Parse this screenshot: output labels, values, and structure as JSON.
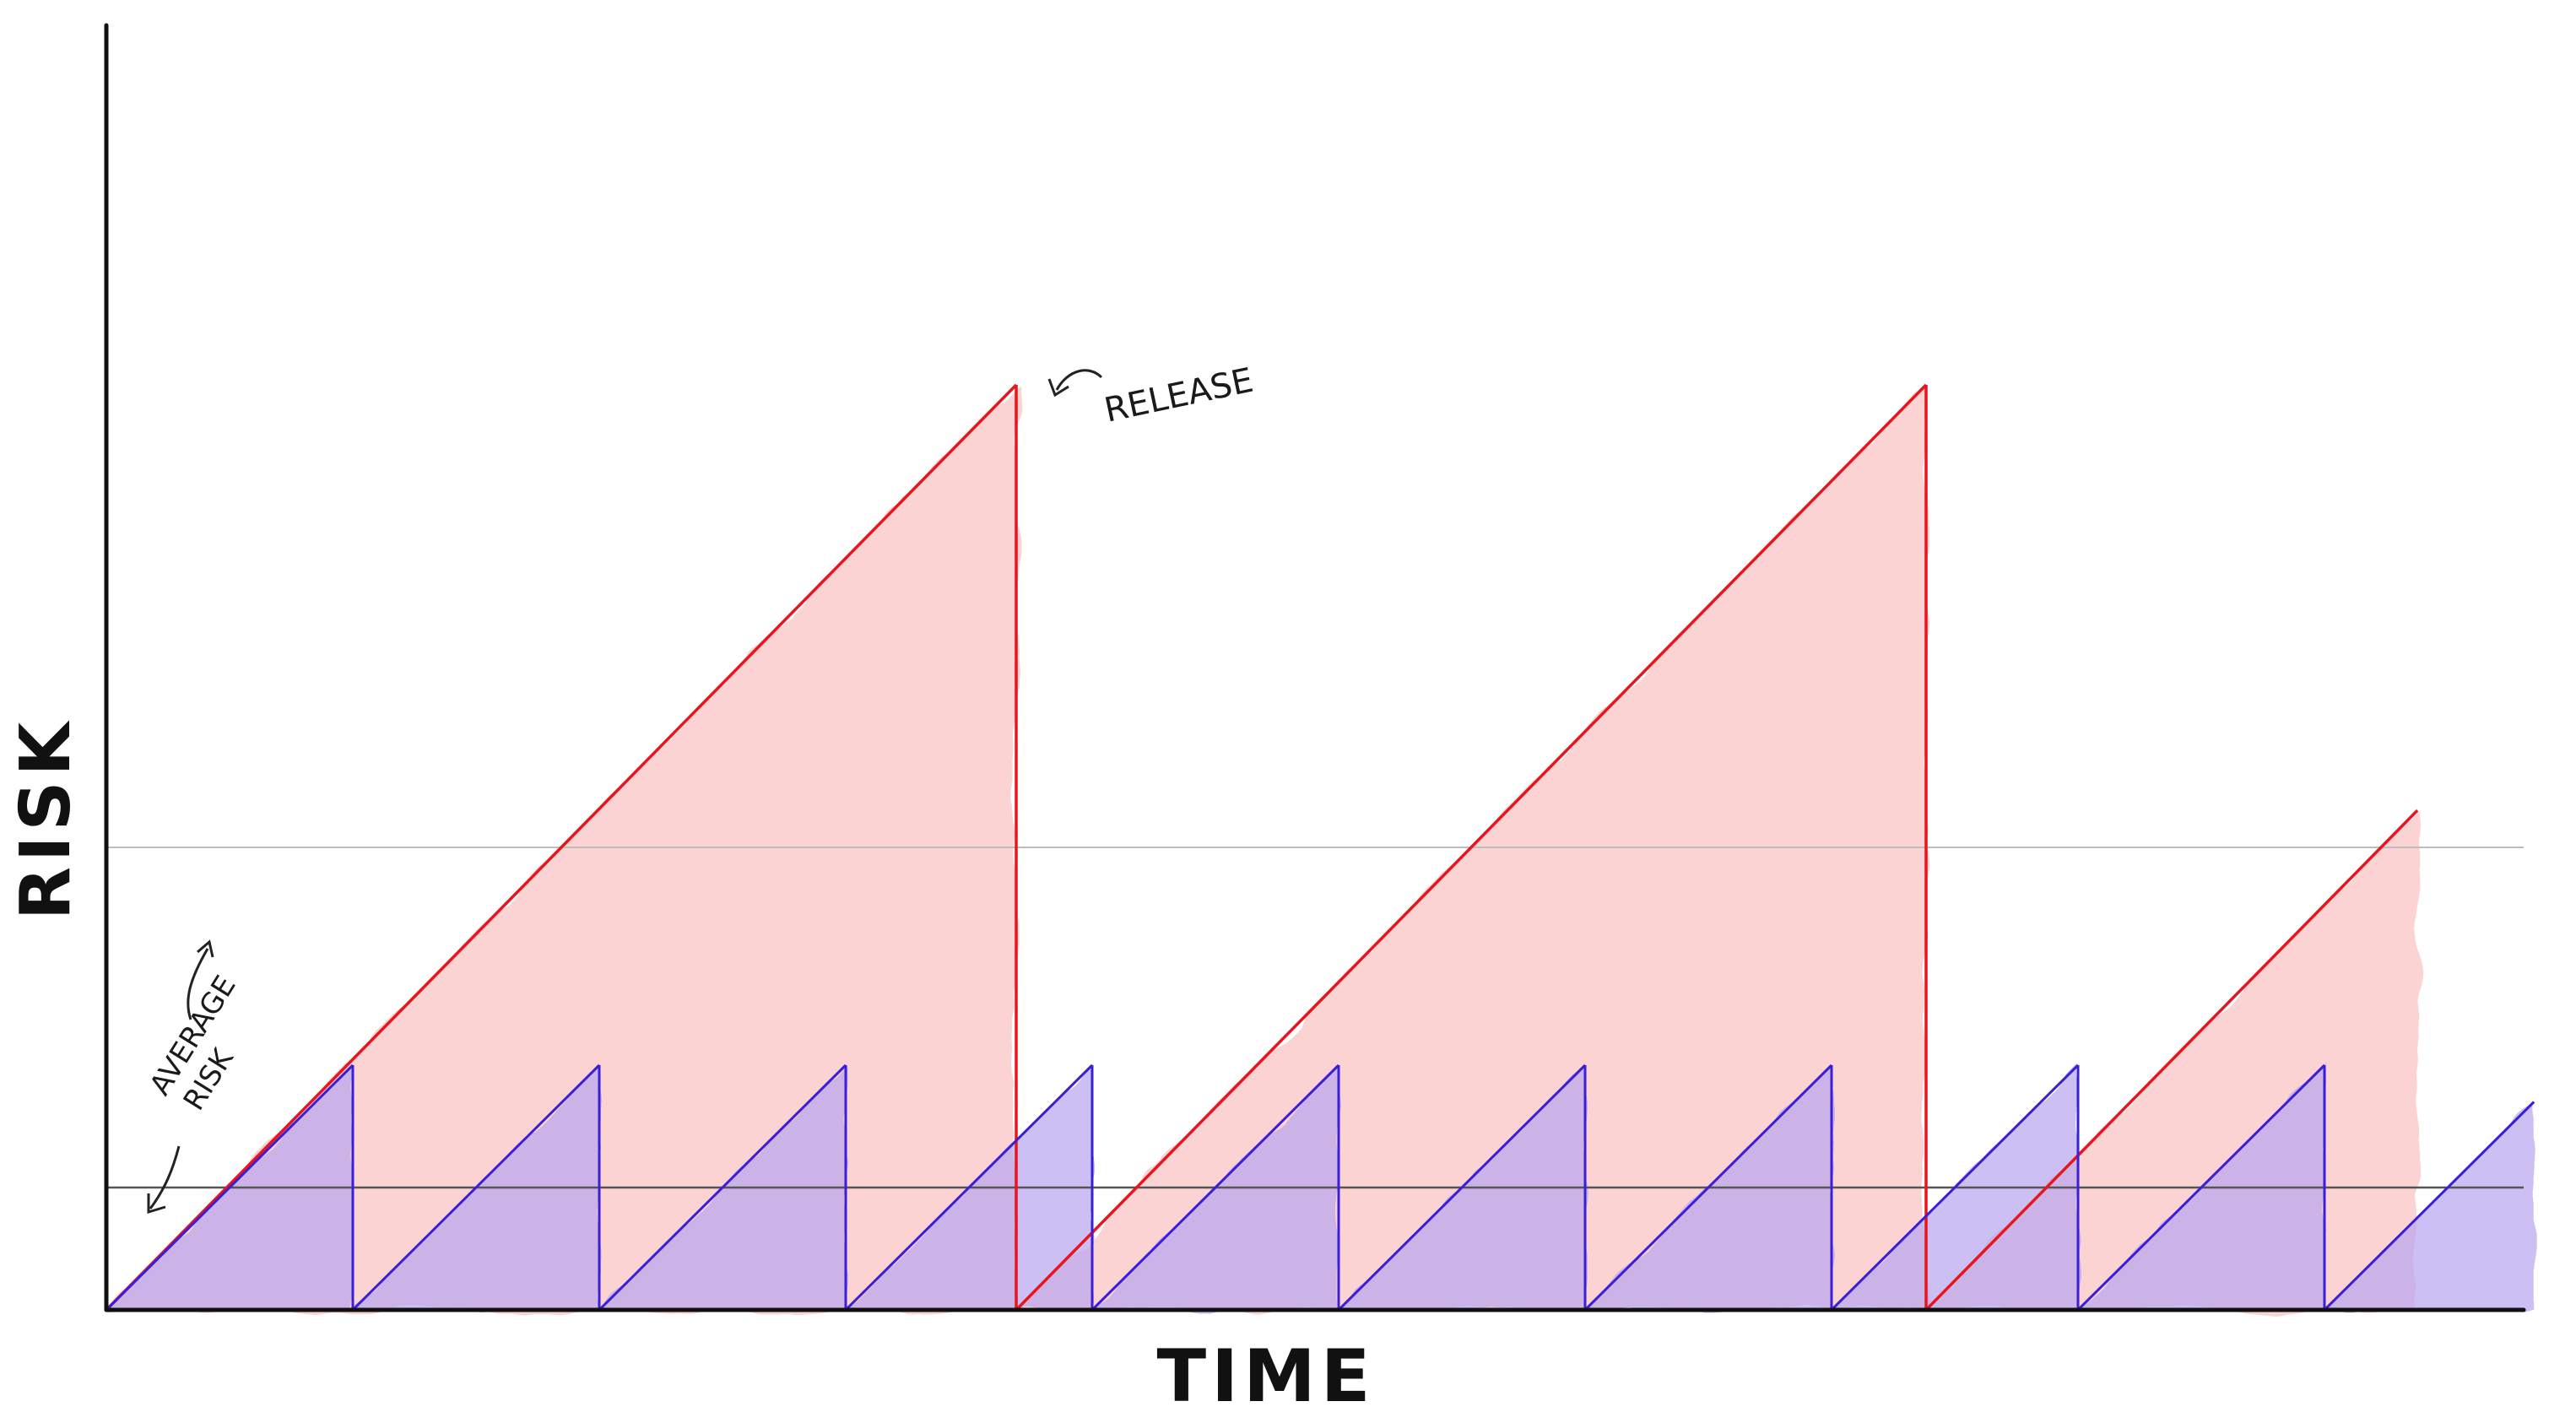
{
  "diagram": {
    "x_axis_label": "TIME",
    "y_axis_label": "RISK",
    "annotations": {
      "release": "RELEASE",
      "average_risk_line1": "AVERAGE",
      "average_risk_line2": "RISK"
    },
    "series": {
      "infrequent_releases": {
        "color": "#e8141e",
        "fill": "#fbc6c6",
        "cycles": 3,
        "third_cycle_completion": 0.54
      },
      "frequent_releases": {
        "color": "#3a1fd6",
        "fill": "#b9a6ee",
        "cycles": 10,
        "last_cycle_completion": 0.85
      }
    },
    "average_risk_levels": {
      "infrequent": 0.5,
      "frequent": 0.5
    },
    "colors": {
      "axis": "#111111",
      "average_line_high": "#bdbdbd",
      "average_line_low": "#555555"
    }
  }
}
